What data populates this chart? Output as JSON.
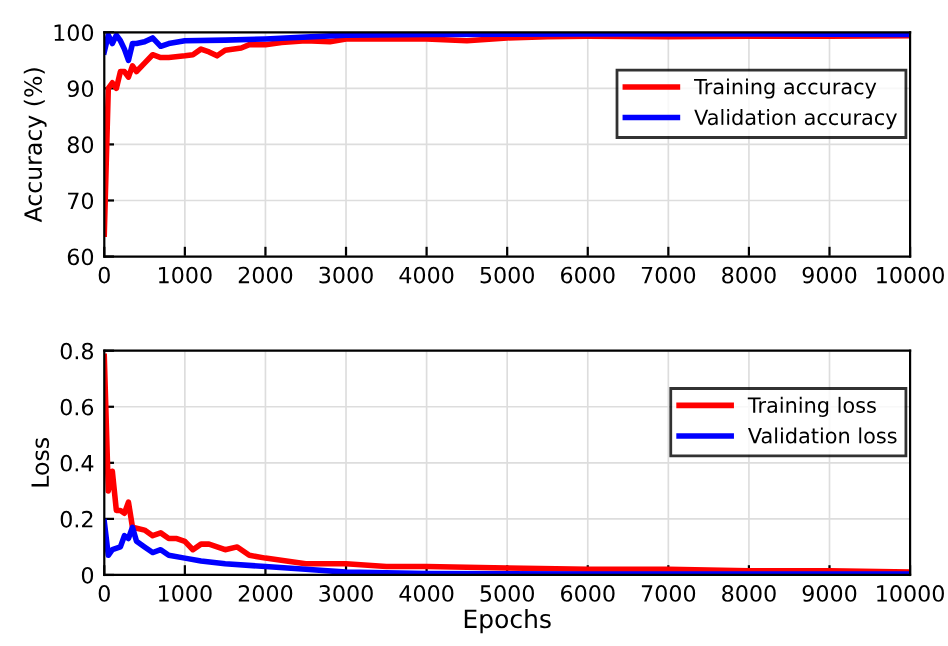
{
  "chart_data": [
    {
      "type": "line",
      "ylabel": "Accuracy (%)",
      "xlim": [
        0,
        10000
      ],
      "xticks": [
        0,
        1000,
        2000,
        3000,
        4000,
        5000,
        6000,
        7000,
        8000,
        9000,
        10000
      ],
      "ylim": [
        60,
        100
      ],
      "yticks": [
        60,
        70,
        80,
        90,
        100
      ],
      "grid": true,
      "legend": "top right",
      "series": [
        {
          "name": "Training accuracy",
          "color": "#ff0000",
          "x": [
            0,
            50,
            100,
            150,
            200,
            250,
            300,
            350,
            400,
            500,
            600,
            700,
            800,
            1000,
            1100,
            1200,
            1300,
            1400,
            1500,
            1700,
            1800,
            2000,
            2200,
            2500,
            2800,
            3000,
            3500,
            4000,
            4500,
            5000,
            5500,
            6000,
            7000,
            8000,
            9000,
            10000
          ],
          "values": [
            64,
            90,
            91,
            90,
            93,
            93,
            92,
            94,
            93,
            94.5,
            96,
            95.5,
            95.5,
            95.8,
            96,
            97,
            96.5,
            95.8,
            96.8,
            97.2,
            97.8,
            97.8,
            98.2,
            98.5,
            98.3,
            98.8,
            98.8,
            98.8,
            98.5,
            99,
            99.2,
            99.3,
            99.2,
            99.3,
            99.3,
            99.4
          ]
        },
        {
          "name": "Validation accuracy",
          "color": "#0000ff",
          "x": [
            0,
            50,
            100,
            150,
            200,
            250,
            300,
            350,
            400,
            500,
            600,
            700,
            800,
            1000,
            1500,
            2000,
            3000,
            4000,
            6000,
            8000,
            10000
          ],
          "values": [
            96.5,
            99.5,
            98,
            99.5,
            98.5,
            97,
            95,
            98,
            98,
            98.3,
            99,
            97.5,
            98,
            98.5,
            98.6,
            98.8,
            99.5,
            99.6,
            99.7,
            99.7,
            99.6
          ]
        }
      ]
    },
    {
      "type": "line",
      "xlabel": "Epochs",
      "ylabel": "Loss",
      "xlim": [
        0,
        10000
      ],
      "xticks": [
        0,
        1000,
        2000,
        3000,
        4000,
        5000,
        6000,
        7000,
        8000,
        9000,
        10000
      ],
      "ylim": [
        0,
        0.8
      ],
      "yticks": [
        0,
        0.2,
        0.4,
        0.6,
        0.8
      ],
      "grid": true,
      "legend": "top right",
      "series": [
        {
          "name": "Training loss",
          "color": "#ff0000",
          "x": [
            0,
            50,
            100,
            150,
            200,
            250,
            300,
            350,
            500,
            600,
            700,
            800,
            900,
            1000,
            1100,
            1200,
            1300,
            1500,
            1650,
            1800,
            2000,
            2500,
            3000,
            3500,
            4000,
            5000,
            6000,
            7000,
            8000,
            9000,
            10000
          ],
          "values": [
            0.78,
            0.3,
            0.37,
            0.23,
            0.23,
            0.22,
            0.26,
            0.17,
            0.16,
            0.14,
            0.15,
            0.13,
            0.13,
            0.12,
            0.09,
            0.11,
            0.11,
            0.09,
            0.1,
            0.07,
            0.06,
            0.04,
            0.04,
            0.03,
            0.03,
            0.025,
            0.02,
            0.02,
            0.015,
            0.015,
            0.01
          ]
        },
        {
          "name": "Validation loss",
          "color": "#0000ff",
          "x": [
            0,
            50,
            100,
            200,
            250,
            300,
            350,
            400,
            500,
            600,
            700,
            800,
            1000,
            1200,
            1500,
            2000,
            2500,
            3000,
            4000,
            6000,
            10000
          ],
          "values": [
            0.19,
            0.07,
            0.09,
            0.1,
            0.14,
            0.13,
            0.17,
            0.12,
            0.1,
            0.08,
            0.09,
            0.07,
            0.06,
            0.05,
            0.04,
            0.03,
            0.02,
            0.01,
            0.005,
            0.003,
            0.003
          ]
        }
      ]
    }
  ]
}
